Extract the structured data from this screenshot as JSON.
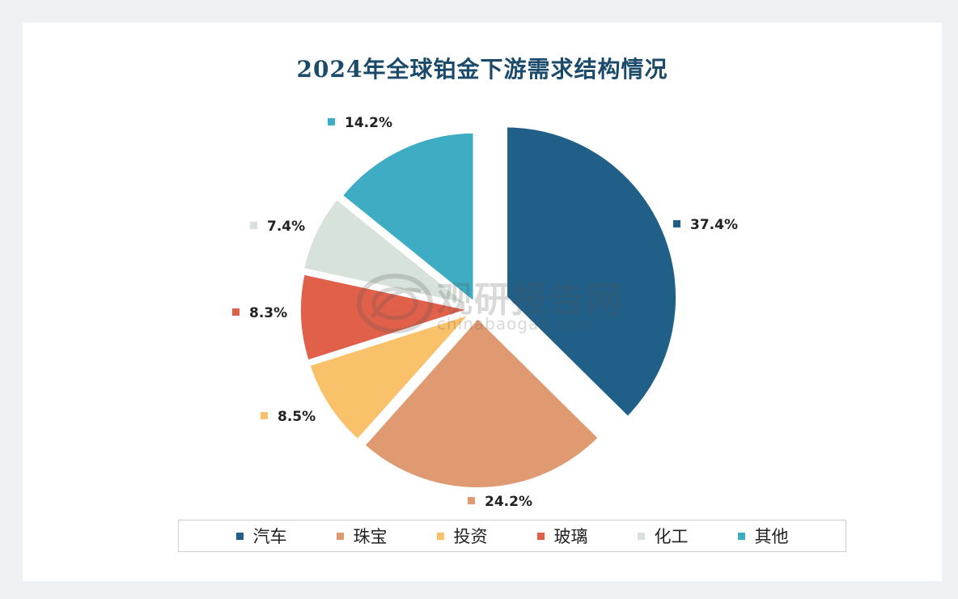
{
  "chart_data": {
    "type": "pie",
    "title": "2024年全球铂金下游需求结构情况",
    "categories": [
      "汽车",
      "珠宝",
      "投资",
      "玻璃",
      "化工",
      "其他"
    ],
    "values": [
      37.4,
      24.2,
      8.5,
      8.3,
      7.4,
      14.2
    ],
    "value_labels": [
      "37.4%",
      "24.2%",
      "8.5%",
      "8.3%",
      "7.4%",
      "14.2%"
    ],
    "colors": [
      "#1f5f88",
      "#e09a72",
      "#f8c16a",
      "#e0604a",
      "#d7e2da",
      "#3eadc4"
    ],
    "legend_position": "bottom",
    "exploded": true
  },
  "watermark": {
    "name": "观研报告网",
    "url": "chinabaogao.com"
  }
}
